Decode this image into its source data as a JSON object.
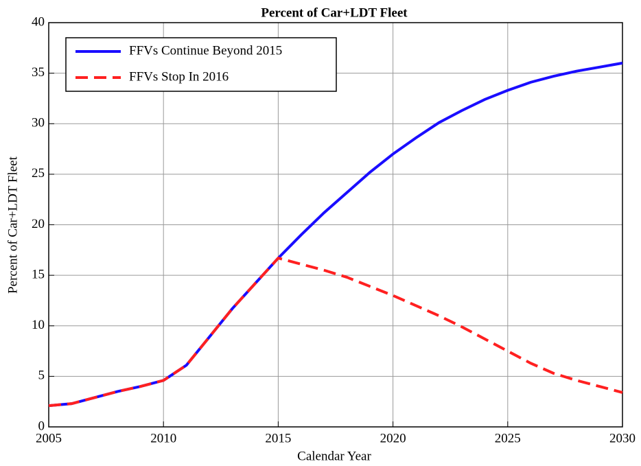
{
  "chart_data": {
    "type": "line",
    "title": "Percent of Car+LDT Fleet",
    "x_label": "Calendar Year",
    "y_label": "Percent of Car+LDT Fleet",
    "x": [
      2005,
      2006,
      2007,
      2008,
      2009,
      2010,
      2011,
      2012,
      2013,
      2014,
      2015,
      2016,
      2017,
      2018,
      2019,
      2020,
      2021,
      2022,
      2023,
      2024,
      2025,
      2026,
      2027,
      2028,
      2029,
      2030
    ],
    "series": [
      {
        "name": "FFVs Continue Beyond 2015",
        "color": "#1a0dff",
        "linestyle": "solid",
        "values": [
          2.1,
          2.3,
          2.9,
          3.5,
          4.0,
          4.6,
          6.1,
          8.9,
          11.7,
          14.2,
          16.7,
          19.0,
          21.2,
          23.2,
          25.2,
          27.0,
          28.6,
          30.1,
          31.3,
          32.4,
          33.3,
          34.1,
          34.7,
          35.2,
          35.6,
          36.0
        ]
      },
      {
        "name": "FFVs Stop In 2016",
        "color": "#ff2020",
        "linestyle": "dashed",
        "values": [
          2.1,
          2.3,
          2.9,
          3.5,
          4.0,
          4.6,
          6.1,
          8.9,
          11.7,
          14.2,
          16.7,
          16.1,
          15.5,
          14.8,
          13.9,
          13.0,
          12.0,
          11.0,
          9.9,
          8.7,
          7.5,
          6.3,
          5.3,
          4.6,
          4.0,
          3.4
        ]
      }
    ],
    "xlim": [
      2005,
      2030
    ],
    "xticks": [
      2005,
      2010,
      2015,
      2020,
      2025,
      2030
    ],
    "ylim": [
      0,
      40
    ],
    "yticks": [
      0,
      5,
      10,
      15,
      20,
      25,
      30,
      35,
      40
    ],
    "grid": true,
    "legend": "upper left"
  }
}
